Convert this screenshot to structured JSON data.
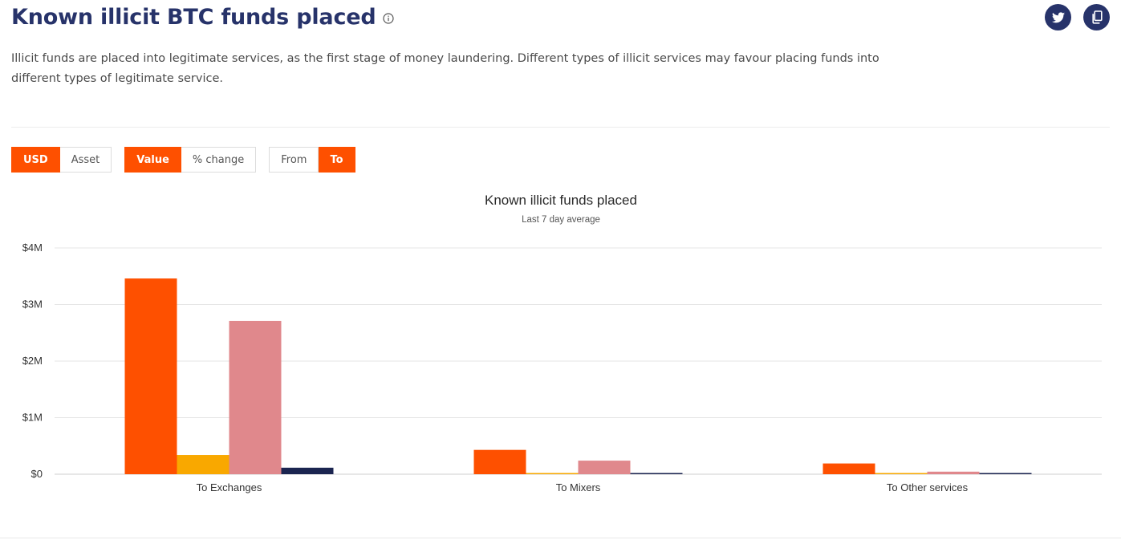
{
  "header": {
    "title": "Known illicit BTC funds placed",
    "description": "Illicit funds are placed into legitimate services, as the first stage of money laundering. Different types of illicit services may favour placing funds into different types of legitimate service."
  },
  "share": {
    "icons": [
      "twitter-icon",
      "copy-icon"
    ]
  },
  "controls": {
    "currency": {
      "options": [
        "USD",
        "Asset"
      ],
      "selected": "USD"
    },
    "metric": {
      "options": [
        "Value",
        "% change"
      ],
      "selected": "Value"
    },
    "direction": {
      "options": [
        "From",
        "To"
      ],
      "selected": "To"
    }
  },
  "colors": {
    "accent": "#fe5000",
    "heading": "#27336a"
  },
  "chart_data": {
    "type": "bar",
    "title": "Known illicit funds placed",
    "subtitle": "Last 7 day average",
    "categories": [
      "To Exchanges",
      "To Mixers",
      "To Other services"
    ],
    "series": [
      {
        "color": "#fe5000",
        "values": [
          3460000,
          430000,
          190000
        ]
      },
      {
        "color": "#f9a800",
        "values": [
          340000,
          15000,
          10000
        ]
      },
      {
        "color": "#e0888c",
        "values": [
          2710000,
          240000,
          45000
        ]
      },
      {
        "color": "#1b2550",
        "values": [
          115000,
          18000,
          15000
        ]
      }
    ],
    "ylim": [
      0,
      4000000
    ],
    "yticks": [
      0,
      1000000,
      2000000,
      3000000,
      4000000
    ],
    "ytick_labels": [
      "$0",
      "$1M",
      "$2M",
      "$3M",
      "$4M"
    ],
    "grid": true
  }
}
